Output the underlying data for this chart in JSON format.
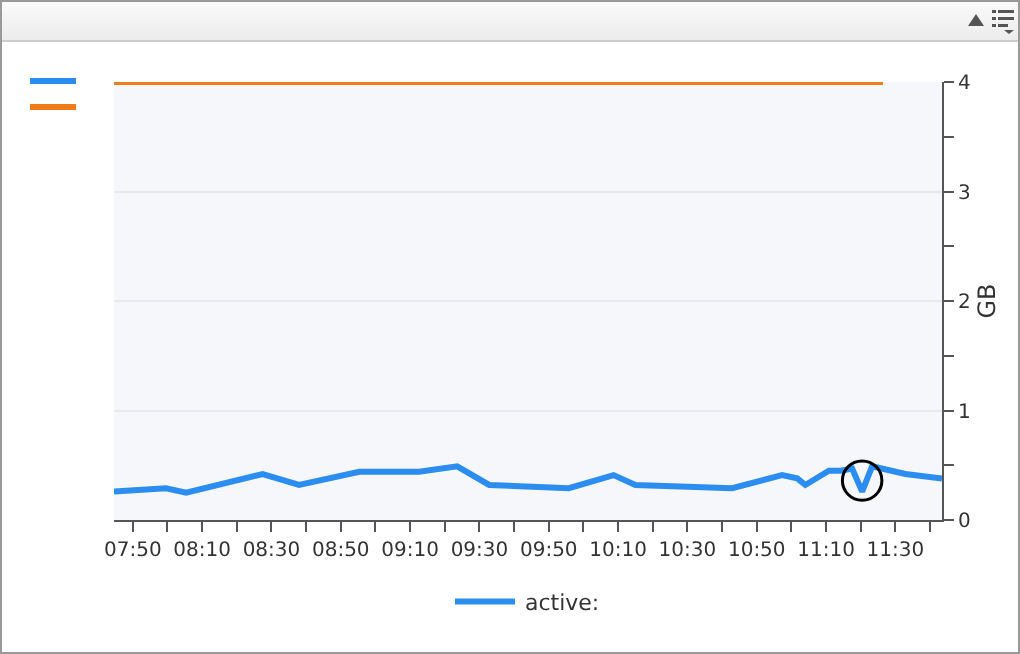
{
  "chart_data": {
    "type": "line",
    "ylabel": "GB",
    "xlim": [
      7.743,
      11.724
    ],
    "xticks": [
      {
        "value": 7.8333,
        "label": "07:50"
      },
      {
        "value": 8.0,
        "label": null
      },
      {
        "value": 8.1667,
        "label": "08:10"
      },
      {
        "value": 8.3333,
        "label": null
      },
      {
        "value": 8.5,
        "label": "08:30"
      },
      {
        "value": 8.6667,
        "label": null
      },
      {
        "value": 8.8333,
        "label": "08:50"
      },
      {
        "value": 9.0,
        "label": null
      },
      {
        "value": 9.1667,
        "label": "09:10"
      },
      {
        "value": 9.3333,
        "label": null
      },
      {
        "value": 9.5,
        "label": "09:30"
      },
      {
        "value": 9.6667,
        "label": null
      },
      {
        "value": 9.8333,
        "label": "09:50"
      },
      {
        "value": 10.0,
        "label": null
      },
      {
        "value": 10.1667,
        "label": "10:10"
      },
      {
        "value": 10.3333,
        "label": null
      },
      {
        "value": 10.5,
        "label": "10:30"
      },
      {
        "value": 10.6667,
        "label": null
      },
      {
        "value": 10.8333,
        "label": "10:50"
      },
      {
        "value": 11.0,
        "label": null
      },
      {
        "value": 11.1667,
        "label": "11:10"
      },
      {
        "value": 11.3333,
        "label": null
      },
      {
        "value": 11.5,
        "label": "11:30"
      },
      {
        "value": 11.6667,
        "label": null
      }
    ],
    "ylim": [
      0,
      4
    ],
    "yticks": [
      0,
      {
        "value": 0.5,
        "label": null
      },
      1,
      {
        "value": 1.5,
        "label": null
      },
      2,
      {
        "value": 2.5,
        "label": null
      },
      3,
      {
        "value": 3.5,
        "label": null
      },
      4
    ],
    "grid": "y",
    "legend": "bottom",
    "marker": "none",
    "line_style": "solid",
    "series": [
      {
        "name": "active:",
        "color": "#2b8df0",
        "x": [
          7.743,
          7.993,
          8.09,
          8.458,
          8.633,
          8.922,
          9.21,
          9.393,
          9.547,
          9.93,
          10.145,
          10.25,
          10.715,
          10.955,
          11.028,
          11.067,
          11.18,
          11.237,
          11.292,
          11.34,
          11.388,
          11.548,
          11.724
        ],
        "values": [
          0.26,
          0.29,
          0.25,
          0.42,
          0.32,
          0.44,
          0.44,
          0.49,
          0.32,
          0.29,
          0.41,
          0.32,
          0.29,
          0.41,
          0.38,
          0.32,
          0.45,
          0.45,
          0.47,
          0.26,
          0.49,
          0.42,
          0.38
        ]
      },
      {
        "color": "#f07d1a",
        "x": [
          7.743,
          11.44
        ],
        "values": [
          4,
          4
        ]
      }
    ]
  }
}
